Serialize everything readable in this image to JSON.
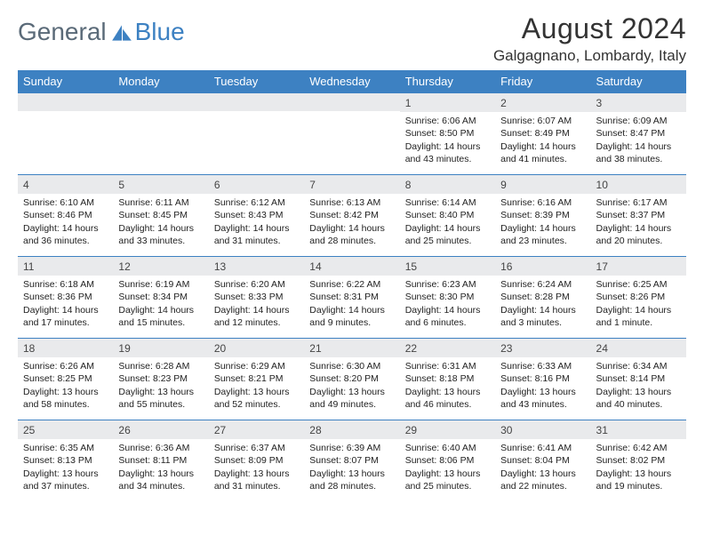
{
  "brand": {
    "part1": "General",
    "part2": "Blue"
  },
  "title": "August 2024",
  "location": "Galgagnano, Lombardy, Italy",
  "colors": {
    "accent": "#3d81c2",
    "header_bg": "#3d81c2",
    "daynum_bg": "#e9eaec",
    "text": "#222222",
    "bg": "#ffffff"
  },
  "weekday_headers": [
    "Sunday",
    "Monday",
    "Tuesday",
    "Wednesday",
    "Thursday",
    "Friday",
    "Saturday"
  ],
  "weeks": [
    [
      null,
      null,
      null,
      null,
      {
        "n": "1",
        "sunrise": "6:06 AM",
        "sunset": "8:50 PM",
        "daylight": "14 hours and 43 minutes."
      },
      {
        "n": "2",
        "sunrise": "6:07 AM",
        "sunset": "8:49 PM",
        "daylight": "14 hours and 41 minutes."
      },
      {
        "n": "3",
        "sunrise": "6:09 AM",
        "sunset": "8:47 PM",
        "daylight": "14 hours and 38 minutes."
      }
    ],
    [
      {
        "n": "4",
        "sunrise": "6:10 AM",
        "sunset": "8:46 PM",
        "daylight": "14 hours and 36 minutes."
      },
      {
        "n": "5",
        "sunrise": "6:11 AM",
        "sunset": "8:45 PM",
        "daylight": "14 hours and 33 minutes."
      },
      {
        "n": "6",
        "sunrise": "6:12 AM",
        "sunset": "8:43 PM",
        "daylight": "14 hours and 31 minutes."
      },
      {
        "n": "7",
        "sunrise": "6:13 AM",
        "sunset": "8:42 PM",
        "daylight": "14 hours and 28 minutes."
      },
      {
        "n": "8",
        "sunrise": "6:14 AM",
        "sunset": "8:40 PM",
        "daylight": "14 hours and 25 minutes."
      },
      {
        "n": "9",
        "sunrise": "6:16 AM",
        "sunset": "8:39 PM",
        "daylight": "14 hours and 23 minutes."
      },
      {
        "n": "10",
        "sunrise": "6:17 AM",
        "sunset": "8:37 PM",
        "daylight": "14 hours and 20 minutes."
      }
    ],
    [
      {
        "n": "11",
        "sunrise": "6:18 AM",
        "sunset": "8:36 PM",
        "daylight": "14 hours and 17 minutes."
      },
      {
        "n": "12",
        "sunrise": "6:19 AM",
        "sunset": "8:34 PM",
        "daylight": "14 hours and 15 minutes."
      },
      {
        "n": "13",
        "sunrise": "6:20 AM",
        "sunset": "8:33 PM",
        "daylight": "14 hours and 12 minutes."
      },
      {
        "n": "14",
        "sunrise": "6:22 AM",
        "sunset": "8:31 PM",
        "daylight": "14 hours and 9 minutes."
      },
      {
        "n": "15",
        "sunrise": "6:23 AM",
        "sunset": "8:30 PM",
        "daylight": "14 hours and 6 minutes."
      },
      {
        "n": "16",
        "sunrise": "6:24 AM",
        "sunset": "8:28 PM",
        "daylight": "14 hours and 3 minutes."
      },
      {
        "n": "17",
        "sunrise": "6:25 AM",
        "sunset": "8:26 PM",
        "daylight": "14 hours and 1 minute."
      }
    ],
    [
      {
        "n": "18",
        "sunrise": "6:26 AM",
        "sunset": "8:25 PM",
        "daylight": "13 hours and 58 minutes."
      },
      {
        "n": "19",
        "sunrise": "6:28 AM",
        "sunset": "8:23 PM",
        "daylight": "13 hours and 55 minutes."
      },
      {
        "n": "20",
        "sunrise": "6:29 AM",
        "sunset": "8:21 PM",
        "daylight": "13 hours and 52 minutes."
      },
      {
        "n": "21",
        "sunrise": "6:30 AM",
        "sunset": "8:20 PM",
        "daylight": "13 hours and 49 minutes."
      },
      {
        "n": "22",
        "sunrise": "6:31 AM",
        "sunset": "8:18 PM",
        "daylight": "13 hours and 46 minutes."
      },
      {
        "n": "23",
        "sunrise": "6:33 AM",
        "sunset": "8:16 PM",
        "daylight": "13 hours and 43 minutes."
      },
      {
        "n": "24",
        "sunrise": "6:34 AM",
        "sunset": "8:14 PM",
        "daylight": "13 hours and 40 minutes."
      }
    ],
    [
      {
        "n": "25",
        "sunrise": "6:35 AM",
        "sunset": "8:13 PM",
        "daylight": "13 hours and 37 minutes."
      },
      {
        "n": "26",
        "sunrise": "6:36 AM",
        "sunset": "8:11 PM",
        "daylight": "13 hours and 34 minutes."
      },
      {
        "n": "27",
        "sunrise": "6:37 AM",
        "sunset": "8:09 PM",
        "daylight": "13 hours and 31 minutes."
      },
      {
        "n": "28",
        "sunrise": "6:39 AM",
        "sunset": "8:07 PM",
        "daylight": "13 hours and 28 minutes."
      },
      {
        "n": "29",
        "sunrise": "6:40 AM",
        "sunset": "8:06 PM",
        "daylight": "13 hours and 25 minutes."
      },
      {
        "n": "30",
        "sunrise": "6:41 AM",
        "sunset": "8:04 PM",
        "daylight": "13 hours and 22 minutes."
      },
      {
        "n": "31",
        "sunrise": "6:42 AM",
        "sunset": "8:02 PM",
        "daylight": "13 hours and 19 minutes."
      }
    ]
  ],
  "labels": {
    "sunrise": "Sunrise:",
    "sunset": "Sunset:",
    "daylight": "Daylight:"
  }
}
